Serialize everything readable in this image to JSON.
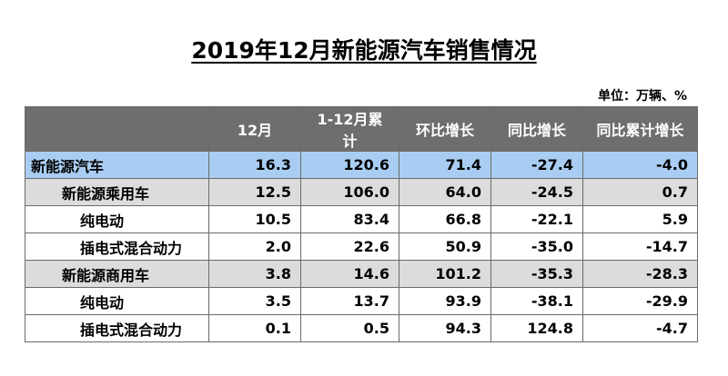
{
  "title": "2019年12月新能源汽车销售情况",
  "unit": "单位：万辆、%",
  "columns": [
    "",
    "12月",
    "1-12月累计",
    "环比增长",
    "同比增长",
    "同比累计增长"
  ],
  "rows": [
    {
      "label": "新能源汽车",
      "level": 0,
      "style": "hl",
      "values": [
        "16.3",
        "120.6",
        "71.4",
        "-27.4",
        "-4.0"
      ]
    },
    {
      "label": "新能源乘用车",
      "level": 1,
      "style": "gray",
      "values": [
        "12.5",
        "106.0",
        "64.0",
        "-24.5",
        "0.7"
      ]
    },
    {
      "label": "纯电动",
      "level": 2,
      "style": "white",
      "values": [
        "10.5",
        "83.4",
        "66.8",
        "-22.1",
        "5.9"
      ]
    },
    {
      "label": "插电式混合动力",
      "level": 2,
      "style": "white",
      "values": [
        "2.0",
        "22.6",
        "50.9",
        "-35.0",
        "-14.7"
      ]
    },
    {
      "label": "新能源商用车",
      "level": 1,
      "style": "gray",
      "values": [
        "3.8",
        "14.6",
        "101.2",
        "-35.3",
        "-28.3"
      ]
    },
    {
      "label": "纯电动",
      "level": 2,
      "style": "white",
      "values": [
        "3.5",
        "13.7",
        "93.9",
        "-38.1",
        "-29.9"
      ]
    },
    {
      "label": "插电式混合动力",
      "level": 2,
      "style": "white",
      "values": [
        "0.1",
        "0.5",
        "94.3",
        "124.8",
        "-4.7"
      ]
    }
  ]
}
